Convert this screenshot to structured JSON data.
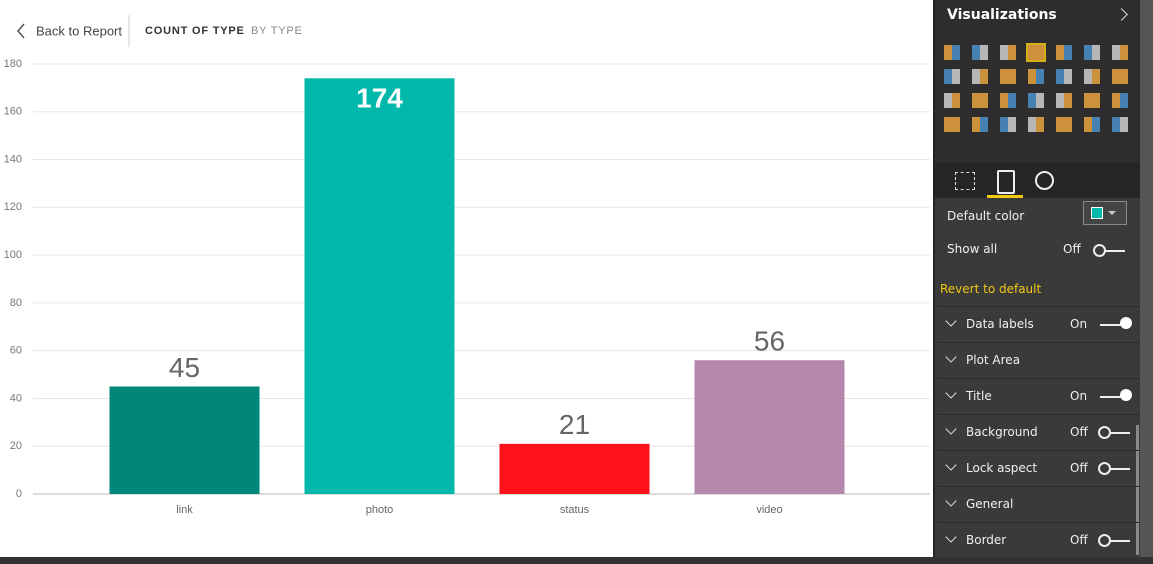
{
  "header": {
    "back": "Back to Report",
    "tabs": [
      "COUNT OF TYPE",
      "BY TYPE"
    ]
  },
  "chart_data": {
    "type": "bar",
    "categories": [
      "link",
      "photo",
      "status",
      "video"
    ],
    "values": [
      45,
      174,
      21,
      56
    ],
    "colors": [
      "#01877a",
      "#01b8aa",
      "#fd111a",
      "#b687ac"
    ],
    "ylim": [
      0,
      180
    ],
    "yticks": [
      0,
      20,
      40,
      60,
      80,
      100,
      120,
      140,
      160,
      180
    ],
    "grid": true
  },
  "panel": {
    "title": "Visualizations",
    "default_color": "Default color",
    "show_all": {
      "label": "Show all",
      "state": "Off"
    },
    "revert": "Revert to default",
    "sections": [
      {
        "label": "Data labels",
        "state": "On"
      },
      {
        "label": "Plot Area"
      },
      {
        "label": "Title",
        "state": "On"
      },
      {
        "label": "Background",
        "state": "Off"
      },
      {
        "label": "Lock aspect",
        "state": "Off"
      },
      {
        "label": "General"
      },
      {
        "label": "Border",
        "state": "Off"
      }
    ]
  }
}
